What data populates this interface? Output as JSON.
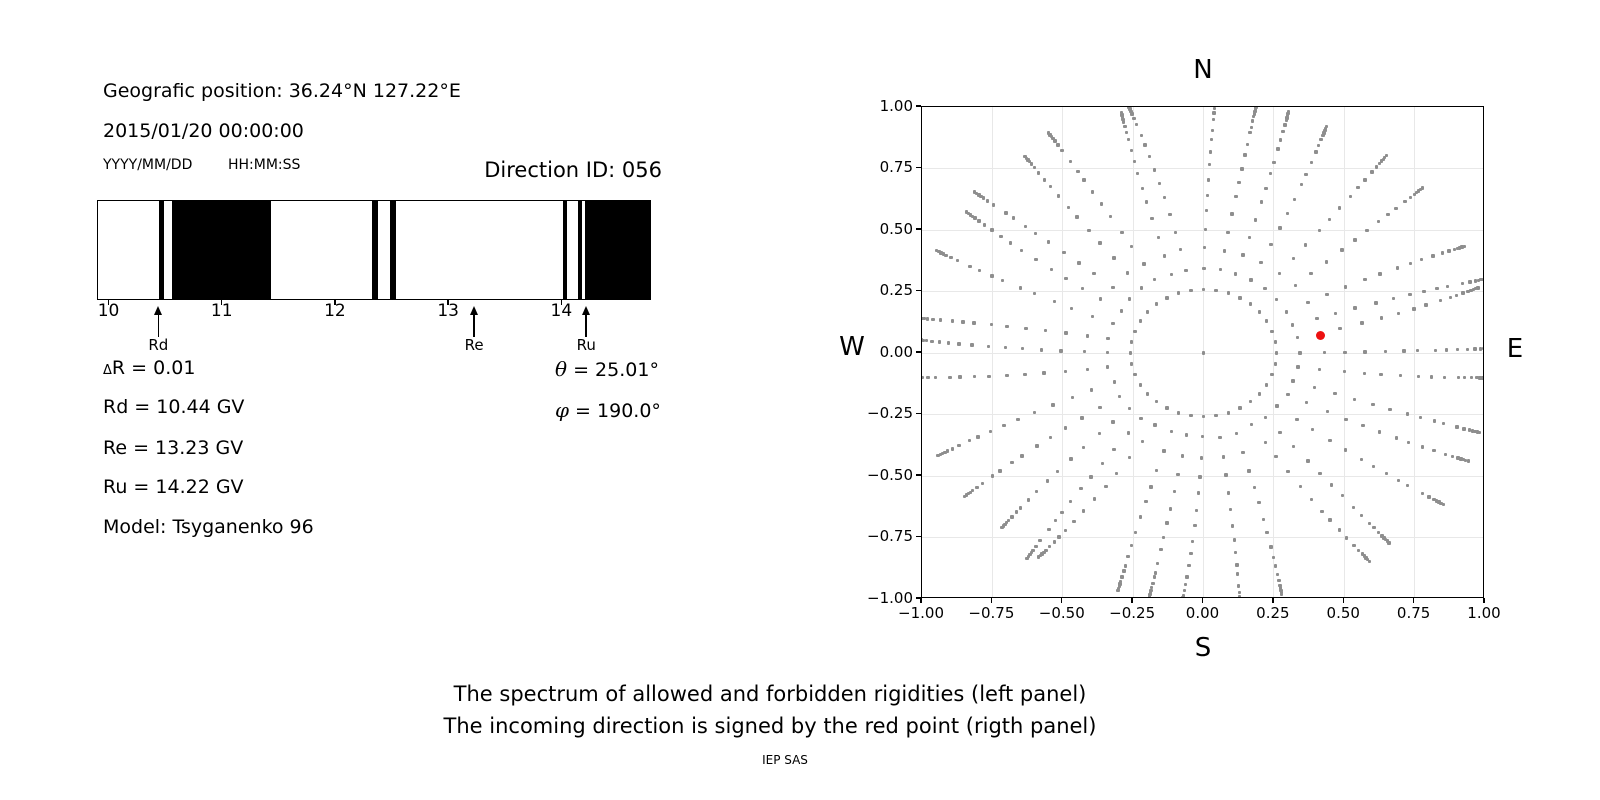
{
  "header": {
    "position_line": "Geografic position: 36.24°N 127.22°E",
    "datetime_line": "2015/01/20 00:00:00",
    "date_format_label": "YYYY/MM/DD",
    "time_format_label": "HH:MM:SS",
    "direction_id_label": "Direction ID: 056"
  },
  "parameters": {
    "delta_symbol": "Δ",
    "delta_rest": "R = 0.01",
    "rd_line": "Rd = 10.44 GV",
    "re_line": "Re = 13.23 GV",
    "ru_line": "Ru = 14.22 GV",
    "model_line": "Model: Tsyganenko 96",
    "theta_symbol": "θ",
    "theta_rest": " = 25.01°",
    "phi_symbol": "φ",
    "phi_rest": " = 190.0°"
  },
  "chart_data": [
    {
      "type": "heatmap",
      "subtype": "binary-rigidity-spectrum",
      "description": "1D allowed/forbidden rigidity spectrum; white = allowed, black = forbidden",
      "xlim": [
        9.898,
        14.792
      ],
      "xticks": [
        10,
        11,
        12,
        13,
        14
      ],
      "allowed_color": "#ffffff",
      "forbidden_color": "#000000",
      "forbidden_bands_gv": [
        [
          10.44,
          10.48
        ],
        [
          10.55,
          11.43
        ],
        [
          12.33,
          12.38
        ],
        [
          12.49,
          12.54
        ],
        [
          14.02,
          14.06
        ],
        [
          14.15,
          14.19
        ],
        [
          14.22,
          14.792
        ]
      ],
      "markers": [
        {
          "label": "Rd",
          "gv": 10.44
        },
        {
          "label": "Re",
          "gv": 13.23
        },
        {
          "label": "Ru",
          "gv": 14.22
        }
      ]
    },
    {
      "type": "scatter",
      "description": "Sky map of computed direction grid (gray) and incoming direction (red); r = sin(zenith), 36 azimuthal spokes every 10°",
      "xlim": [
        -1,
        1
      ],
      "ylim": [
        -1,
        1
      ],
      "xticks": [
        -1,
        -0.75,
        -0.5,
        -0.25,
        0,
        0.25,
        0.5,
        0.75,
        1
      ],
      "yticks": [
        -1,
        -0.75,
        -0.5,
        -0.25,
        0,
        0.25,
        0.5,
        0.75,
        1
      ],
      "grid": true,
      "grid_color": "#e8e8e8",
      "compass_labels": {
        "top": "N",
        "bottom": "S",
        "left": "W",
        "right": "E"
      },
      "series": [
        {
          "name": "direction-grid-points",
          "marker": "square",
          "color": "#8e8e8e",
          "generator": {
            "azimuth_start_deg": 0,
            "azimuth_step_deg": 10,
            "spoke_count": 36,
            "ring_radii": [
              0.259,
              0.342,
              0.423,
              0.5,
              0.574,
              0.643,
              0.707,
              0.766,
              0.819,
              0.866,
              0.906,
              0.94,
              0.966,
              0.985,
              0.996,
              1.005,
              1.014,
              1.023
            ],
            "center_point": true,
            "spoke_curvature_max_deg": 7
          }
        },
        {
          "name": "incoming-direction",
          "marker": "circle",
          "color": "#ed1111",
          "points": [
            [
              0.416,
              0.073
            ]
          ]
        }
      ]
    }
  ],
  "footer": {
    "caption_line1": "The spectrum of allowed and forbidden rigidities (left panel)",
    "caption_line2": "The incoming direction is signed by the red point (rigth panel)",
    "credit": "IEP SAS"
  }
}
